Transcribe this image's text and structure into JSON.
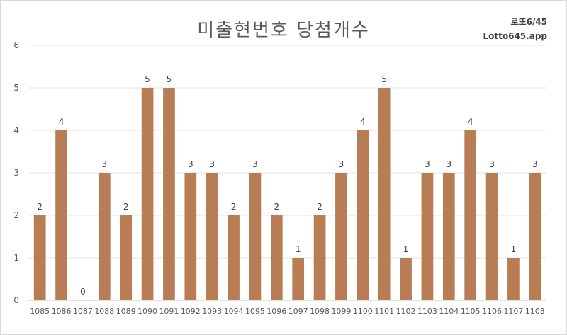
{
  "chart_data": {
    "type": "bar",
    "title": "미출현번호 당첨개수",
    "xlabel": "",
    "ylabel": "",
    "ylim": [
      0,
      6
    ],
    "yticks": [
      0,
      1,
      2,
      3,
      4,
      5,
      6
    ],
    "grid": true,
    "legend": "none",
    "bar_color": "#b87d55",
    "categories": [
      "1085",
      "1086",
      "1087",
      "1088",
      "1089",
      "1090",
      "1091",
      "1092",
      "1093",
      "1094",
      "1095",
      "1096",
      "1097",
      "1098",
      "1099",
      "1100",
      "1101",
      "1102",
      "1103",
      "1104",
      "1105",
      "1106",
      "1107",
      "1108"
    ],
    "values": [
      2,
      4,
      0,
      3,
      2,
      5,
      5,
      3,
      3,
      2,
      3,
      2,
      1,
      2,
      3,
      4,
      5,
      1,
      3,
      3,
      4,
      3,
      1,
      3
    ]
  },
  "brand": {
    "line1": "로또6/45",
    "line2": "Lotto645.app"
  }
}
